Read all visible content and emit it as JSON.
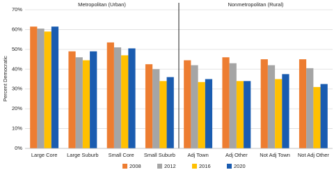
{
  "chart_data": {
    "type": "bar",
    "y_label": "Percent Democratic",
    "annotations": [
      "Metropolitan (Urban)",
      "Nonmetropolitan (Rural)"
    ],
    "categories": [
      "Large Core",
      "Large Suburb",
      "Small Core",
      "Small Suburb",
      "Adj Town",
      "Adj Other",
      "Not Adj Town",
      "Not Adj Other"
    ],
    "series": [
      {
        "name": "2008",
        "color": "#ed7d31",
        "values": [
          61.5,
          49,
          53.5,
          42.5,
          44.5,
          46,
          45,
          45
        ]
      },
      {
        "name": "2012",
        "color": "#a5a5a5",
        "values": [
          60.5,
          46,
          51,
          40,
          42,
          43,
          42,
          40.5
        ]
      },
      {
        "name": "2016",
        "color": "#ffc000",
        "values": [
          59,
          44.5,
          47,
          34,
          33.5,
          34,
          35,
          31
        ]
      },
      {
        "name": "2020",
        "color": "#1a5cb0",
        "values": [
          61.5,
          49,
          50.5,
          36,
          35,
          34,
          37.5,
          32.5
        ]
      }
    ],
    "ylim": [
      0,
      70
    ],
    "yticks": [
      {
        "value": 0,
        "label": "0%"
      },
      {
        "value": 10,
        "label": "10%"
      },
      {
        "value": 20,
        "label": "20%"
      },
      {
        "value": 30,
        "label": "30%"
      },
      {
        "value": 40,
        "label": "40%"
      },
      {
        "value": 50,
        "label": "50%"
      },
      {
        "value": 60,
        "label": "60%"
      },
      {
        "value": 70,
        "label": "70%"
      }
    ],
    "grid": true
  }
}
